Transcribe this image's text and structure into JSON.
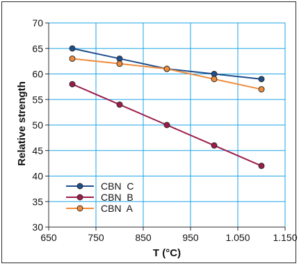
{
  "chart_data": {
    "type": "line",
    "xlabel": "T (°C)",
    "ylabel": "Relative strength",
    "x_ticks": [
      "650",
      "750",
      "850",
      "950",
      "1.050",
      "1.150"
    ],
    "y_ticks": [
      "30",
      "35",
      "40",
      "45",
      "50",
      "55",
      "60",
      "65",
      "70"
    ],
    "xlim": [
      650,
      1150
    ],
    "ylim": [
      30,
      70
    ],
    "grid": true,
    "legend_position": "bottom-left",
    "series": [
      {
        "name": "CBN  C",
        "color": "#1f4e8c",
        "x": [
          700,
          800,
          900,
          1000,
          1100
        ],
        "values": [
          65,
          63,
          61,
          60,
          59
        ]
      },
      {
        "name": "CBN  B",
        "color": "#9b1c4b",
        "x": [
          700,
          800,
          900,
          1000,
          1100
        ],
        "values": [
          58,
          54,
          50,
          46,
          42
        ]
      },
      {
        "name": "CBN  A",
        "color": "#f08c3c",
        "x": [
          700,
          800,
          900,
          1000,
          1100
        ],
        "values": [
          63,
          62,
          61,
          59,
          57
        ]
      }
    ],
    "colors": {
      "grid": "#1aa3e6",
      "axis": "#2b2b2b"
    }
  }
}
